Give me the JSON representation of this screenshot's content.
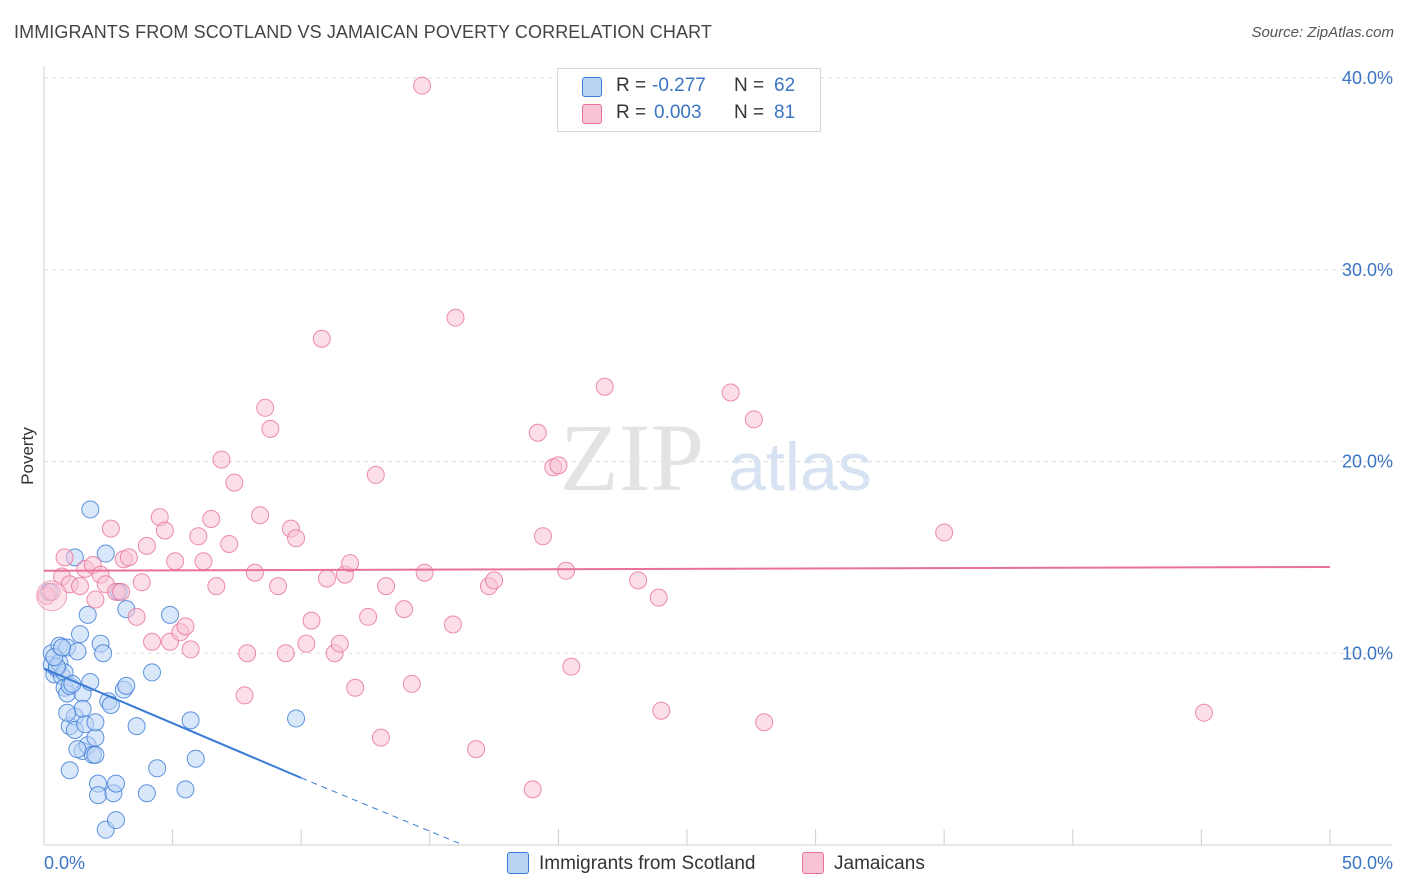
{
  "header": {
    "title": "IMMIGRANTS FROM SCOTLAND VS JAMAICAN POVERTY CORRELATION CHART",
    "source": "Source: ZipAtlas.com"
  },
  "colors": {
    "blue": "#3a7bd5",
    "blue_fill": "#b9d3f5",
    "pink": "#e8709a",
    "pink_fill": "#f8c3d5",
    "axis_text": "#3a75c4",
    "grid": "#dcdcdc"
  },
  "legend": {
    "rows": [
      {
        "r_label": "R =",
        "r_value": "-0.277",
        "n_label": "N =",
        "n_value": "62"
      },
      {
        "r_label": "R =",
        "r_value": "0.003",
        "n_label": "N =",
        "n_value": "81"
      }
    ]
  },
  "watermark": {
    "zip": "ZIP",
    "atlas": "atlas"
  },
  "chart_data": {
    "type": "scatter",
    "title": "IMMIGRANTS FROM SCOTLAND VS JAMAICAN POVERTY CORRELATION CHART",
    "xlabel": "",
    "ylabel": "Poverty",
    "xlim": [
      0,
      50
    ],
    "ylim": [
      0,
      40
    ],
    "x_tick_labels": [
      "0.0%",
      "50.0%"
    ],
    "y_ticks": [
      10,
      20,
      30,
      40
    ],
    "y_tick_labels": [
      "10.0%",
      "20.0%",
      "30.0%",
      "40.0%"
    ],
    "grid": true,
    "series": [
      {
        "name": "Immigrants from Scotland",
        "color": "#3a7bd5",
        "R": -0.277,
        "N": 62,
        "trend": {
          "x0": 0,
          "y0": 9.2,
          "x1": 10,
          "y1": 3.5,
          "dash_to_x": 16.3,
          "dash_to_y": 0
        },
        "points": [
          [
            0.2,
            13.2
          ],
          [
            0.3,
            9.4
          ],
          [
            0.3,
            10.0
          ],
          [
            0.4,
            8.9
          ],
          [
            0.5,
            9.2
          ],
          [
            0.6,
            10.4
          ],
          [
            0.6,
            9.5
          ],
          [
            0.7,
            8.8
          ],
          [
            0.8,
            9.0
          ],
          [
            0.8,
            8.2
          ],
          [
            0.9,
            7.9
          ],
          [
            0.9,
            10.3
          ],
          [
            1.0,
            8.3
          ],
          [
            1.0,
            6.2
          ],
          [
            1.0,
            3.9
          ],
          [
            1.2,
            15.0
          ],
          [
            1.2,
            6.7
          ],
          [
            1.2,
            6.0
          ],
          [
            1.3,
            10.1
          ],
          [
            1.4,
            11.0
          ],
          [
            1.5,
            7.9
          ],
          [
            1.5,
            7.1
          ],
          [
            1.5,
            4.9
          ],
          [
            1.6,
            6.3
          ],
          [
            1.7,
            12.0
          ],
          [
            1.7,
            5.2
          ],
          [
            1.8,
            8.5
          ],
          [
            1.8,
            17.5
          ],
          [
            1.9,
            4.7
          ],
          [
            2.0,
            5.6
          ],
          [
            2.0,
            4.7
          ],
          [
            2.1,
            3.2
          ],
          [
            2.1,
            2.6
          ],
          [
            2.2,
            10.5
          ],
          [
            2.3,
            10.0
          ],
          [
            2.4,
            15.2
          ],
          [
            2.4,
            0.8
          ],
          [
            2.5,
            7.5
          ],
          [
            2.6,
            7.3
          ],
          [
            2.7,
            2.7
          ],
          [
            2.8,
            3.2
          ],
          [
            2.8,
            1.3
          ],
          [
            2.9,
            13.2
          ],
          [
            3.1,
            8.1
          ],
          [
            3.2,
            12.3
          ],
          [
            3.2,
            8.3
          ],
          [
            3.6,
            6.2
          ],
          [
            4.0,
            2.7
          ],
          [
            4.2,
            9.0
          ],
          [
            4.4,
            4.0
          ],
          [
            4.9,
            12.0
          ],
          [
            5.5,
            2.9
          ],
          [
            5.7,
            6.5
          ],
          [
            5.9,
            4.5
          ],
          [
            9.8,
            6.6
          ],
          [
            0.5,
            9.3
          ],
          [
            1.1,
            8.4
          ],
          [
            0.9,
            6.9
          ],
          [
            2.0,
            6.4
          ],
          [
            1.3,
            5.0
          ],
          [
            0.4,
            9.8
          ],
          [
            0.7,
            10.3
          ]
        ]
      },
      {
        "name": "Jamaicans",
        "color": "#e8709a",
        "R": 0.003,
        "N": 81,
        "trend": {
          "x0": 0,
          "y0": 14.3,
          "x1": 50,
          "y1": 14.5
        },
        "points": [
          [
            0.1,
            13.0
          ],
          [
            0.3,
            13.2
          ],
          [
            0.7,
            14.0
          ],
          [
            0.8,
            15.0
          ],
          [
            1.0,
            13.6
          ],
          [
            1.4,
            13.5
          ],
          [
            1.6,
            14.4
          ],
          [
            1.9,
            14.6
          ],
          [
            2.0,
            12.8
          ],
          [
            2.2,
            14.1
          ],
          [
            2.4,
            13.6
          ],
          [
            2.6,
            16.5
          ],
          [
            2.8,
            13.2
          ],
          [
            3.0,
            13.2
          ],
          [
            3.1,
            14.9
          ],
          [
            3.3,
            15.0
          ],
          [
            3.6,
            11.9
          ],
          [
            3.8,
            13.7
          ],
          [
            4.0,
            15.6
          ],
          [
            4.2,
            10.6
          ],
          [
            4.5,
            17.1
          ],
          [
            4.7,
            16.4
          ],
          [
            4.9,
            10.6
          ],
          [
            5.1,
            14.8
          ],
          [
            5.3,
            11.1
          ],
          [
            5.5,
            11.4
          ],
          [
            5.7,
            10.2
          ],
          [
            6.0,
            16.1
          ],
          [
            6.2,
            14.8
          ],
          [
            6.5,
            17.0
          ],
          [
            6.7,
            13.5
          ],
          [
            6.9,
            20.1
          ],
          [
            7.2,
            15.7
          ],
          [
            7.4,
            18.9
          ],
          [
            7.8,
            7.8
          ],
          [
            7.9,
            10.0
          ],
          [
            8.2,
            14.2
          ],
          [
            8.4,
            17.2
          ],
          [
            8.6,
            22.8
          ],
          [
            8.8,
            21.7
          ],
          [
            9.1,
            13.5
          ],
          [
            9.4,
            10.0
          ],
          [
            9.6,
            16.5
          ],
          [
            9.8,
            16.0
          ],
          [
            10.2,
            10.5
          ],
          [
            10.4,
            11.7
          ],
          [
            10.8,
            26.4
          ],
          [
            11.0,
            13.9
          ],
          [
            11.3,
            10.0
          ],
          [
            11.5,
            10.5
          ],
          [
            11.7,
            14.1
          ],
          [
            11.9,
            14.7
          ],
          [
            12.1,
            8.2
          ],
          [
            12.6,
            11.9
          ],
          [
            12.9,
            19.3
          ],
          [
            13.1,
            5.6
          ],
          [
            13.3,
            13.5
          ],
          [
            14.0,
            12.3
          ],
          [
            14.3,
            8.4
          ],
          [
            14.8,
            14.2
          ],
          [
            15.9,
            11.5
          ],
          [
            16.0,
            27.5
          ],
          [
            16.8,
            5.0
          ],
          [
            17.3,
            13.5
          ],
          [
            17.5,
            13.8
          ],
          [
            19.0,
            2.9
          ],
          [
            19.2,
            21.5
          ],
          [
            19.4,
            16.1
          ],
          [
            19.8,
            19.7
          ],
          [
            20.0,
            19.8
          ],
          [
            20.3,
            14.3
          ],
          [
            20.5,
            9.3
          ],
          [
            21.8,
            23.9
          ],
          [
            23.1,
            13.8
          ],
          [
            23.9,
            12.9
          ],
          [
            24.0,
            7.0
          ],
          [
            26.7,
            23.6
          ],
          [
            27.6,
            22.2
          ],
          [
            28.0,
            6.4
          ],
          [
            35.0,
            16.3
          ],
          [
            45.1,
            6.9
          ]
        ]
      }
    ],
    "extra_points": {
      "name": "Jamaicans",
      "outlier": [
        14.7,
        39.6
      ]
    }
  }
}
